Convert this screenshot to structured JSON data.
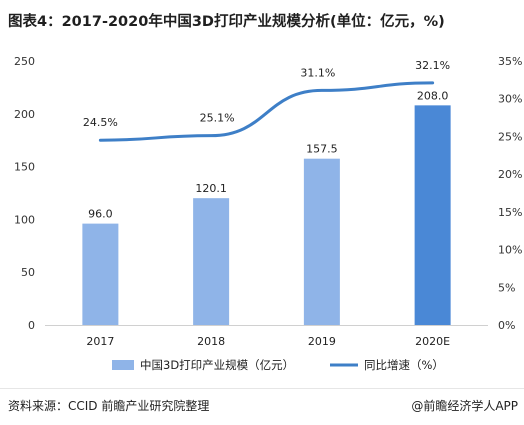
{
  "title": "图表4：2017-2020年中国3D打印产业规模分析(单位：亿元，%)",
  "source_label": "资料来源：CCID 前瞻产业研究院整理",
  "brand_label": "@前瞻经济学人APP",
  "colors": {
    "bar_light": "#8fb4e8",
    "bar_dark": "#4a88d6",
    "line": "#3e7fc7"
  },
  "chart_data": {
    "type": "bar",
    "categories": [
      "2017",
      "2018",
      "2019",
      "2020E"
    ],
    "series": [
      {
        "name": "中国3D打印产业规模（亿元）",
        "values": [
          96.0,
          120.1,
          157.5,
          208.0
        ],
        "value_labels": [
          "96.0",
          "120.1",
          "157.5",
          "208.0"
        ],
        "axis": "left"
      },
      {
        "name": "同比增速（%）",
        "type": "line",
        "values": [
          24.5,
          25.1,
          31.1,
          32.1
        ],
        "value_labels": [
          "24.5%",
          "25.1%",
          "31.1%",
          "32.1%"
        ],
        "axis": "right"
      }
    ],
    "y_left": {
      "range": [
        0,
        250
      ],
      "ticks": [
        "0",
        "50",
        "100",
        "150",
        "200",
        "250"
      ]
    },
    "y_right": {
      "range": [
        0,
        35
      ],
      "ticks": [
        "0%",
        "5%",
        "10%",
        "15%",
        "20%",
        "25%",
        "30%",
        "35%"
      ]
    },
    "grid": false,
    "legend": "bottom"
  }
}
